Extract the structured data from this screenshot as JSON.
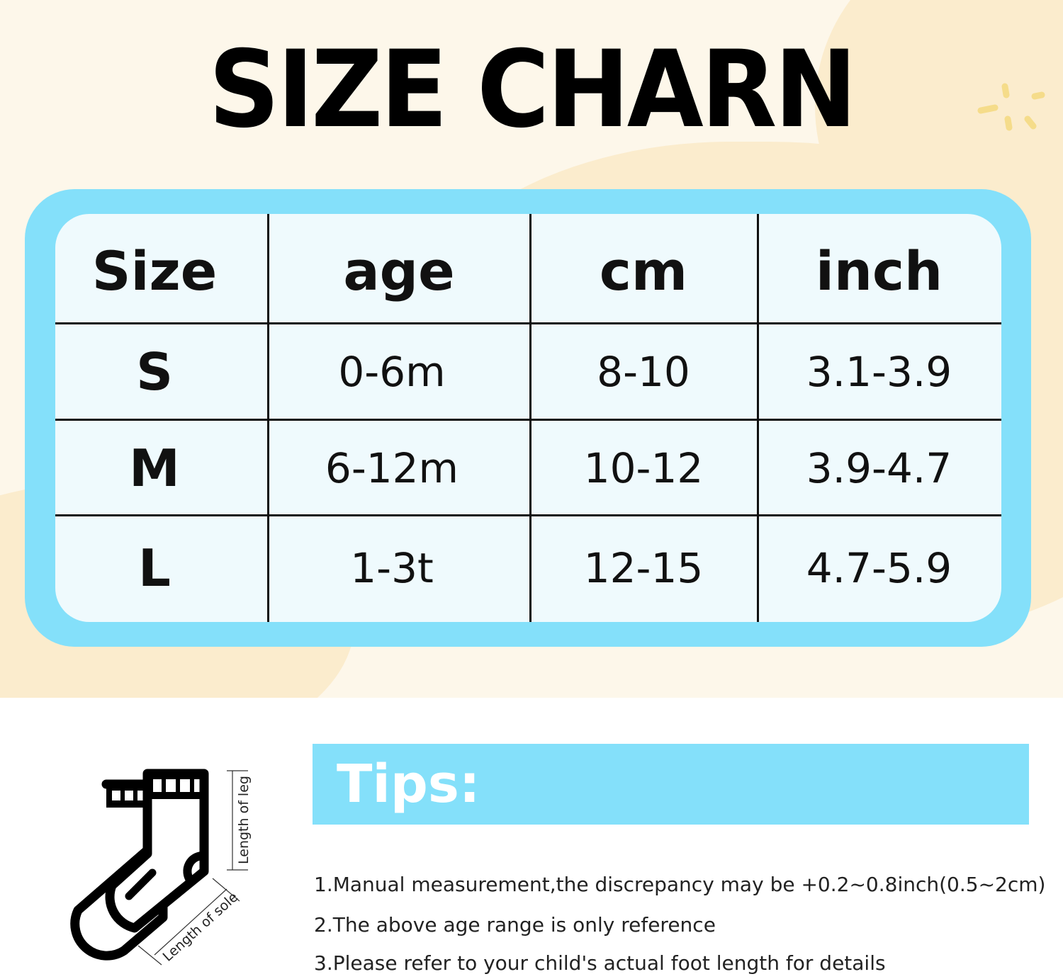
{
  "title": "SIZE CHARN",
  "colors": {
    "accent_blue": "#84e0fa",
    "table_bg": "#effafd",
    "background": "#fdf7ea",
    "blob": "#fbeccd"
  },
  "table": {
    "headers": [
      "Size",
      "age",
      "cm",
      "inch"
    ],
    "rows": [
      [
        "S",
        "0-6m",
        "8-10",
        "3.1-3.9"
      ],
      [
        "M",
        "6-12m",
        "10-12",
        "3.9-4.7"
      ],
      [
        "L",
        "1-3t",
        "12-15",
        "4.7-5.9"
      ]
    ]
  },
  "diagram": {
    "icon": "socks-icon",
    "leg_label": "Length of leg",
    "sole_label": "Length of sole"
  },
  "tips": {
    "heading": "Tips:",
    "items": [
      "1.Manual measurement,the discrepancy may be +0.2~0.8inch(0.5~2cm)",
      "2.The above age range is only reference",
      "3.Please refer to your child's actual foot length for details"
    ]
  }
}
